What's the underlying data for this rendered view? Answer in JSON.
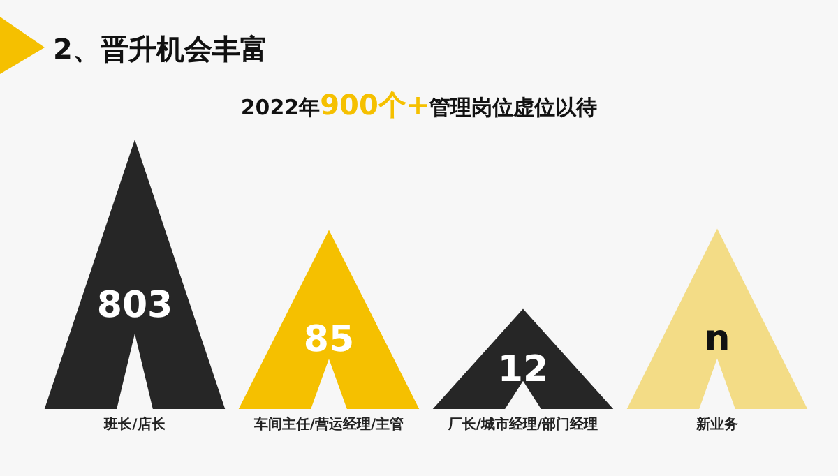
{
  "chart_data": {
    "type": "other",
    "title": "2、晋升机会丰富",
    "subtitle": "2022年900个+管理岗位虚位以待",
    "categories": [
      "班长/店长",
      "车间主任/营运经理/主管",
      "厂长/城市经理/部门经理",
      "新业务"
    ],
    "values": [
      803,
      85,
      12,
      null
    ],
    "value_labels": [
      "803",
      "85",
      "12",
      "n"
    ],
    "colors": [
      "#262626",
      "#f5c000",
      "#262626",
      "#f3dc86"
    ]
  }
}
